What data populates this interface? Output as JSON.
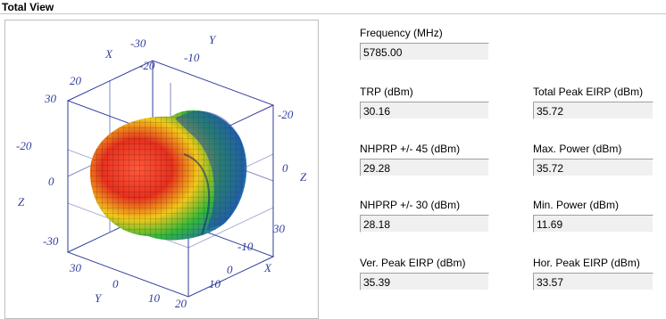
{
  "section": {
    "title": "Total View"
  },
  "plot": {
    "axis_labels": [
      "X",
      "Y",
      "Z",
      "Z",
      "Y",
      "X"
    ],
    "tick_labels": [
      "-30",
      "-20",
      "-10",
      "0",
      "10",
      "20",
      "30"
    ],
    "colors": {
      "axis": "#2f3d9c",
      "hot": "#e8301f",
      "warm": "#f2c81a",
      "mid": "#34b83a",
      "cool": "#1e5fd8"
    }
  },
  "fields": [
    {
      "label": "Frequency (MHz)",
      "value": "5785.00"
    },
    {
      "label": "TRP (dBm)",
      "value": "30.16"
    },
    {
      "label": "Total Peak EIRP (dBm)",
      "value": "35.72"
    },
    {
      "label": "NHPRP +/- 45 (dBm)",
      "value": "29.28"
    },
    {
      "label": "Max. Power (dBm)",
      "value": "35.72"
    },
    {
      "label": "NHPRP +/- 30 (dBm)",
      "value": "28.18"
    },
    {
      "label": "Min. Power (dBm)",
      "value": "11.69"
    },
    {
      "label": "Ver. Peak EIRP (dBm)",
      "value": "35.39"
    },
    {
      "label": "Hor. Peak EIRP (dBm)",
      "value": "33.57"
    }
  ]
}
